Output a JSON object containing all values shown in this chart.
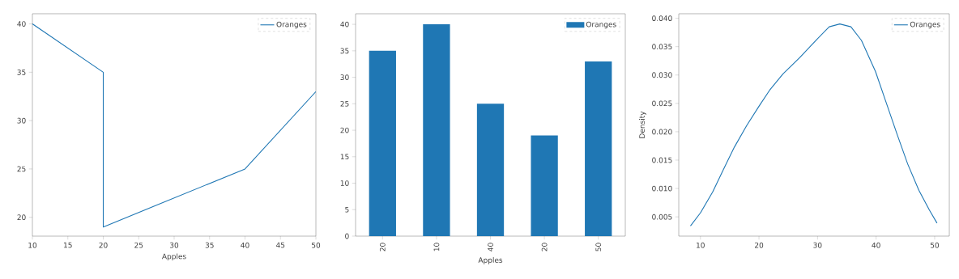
{
  "chart_data": [
    {
      "type": "line",
      "xlabel": "Apples",
      "x": [
        10,
        20,
        20,
        40,
        50
      ],
      "series": [
        {
          "name": "Oranges",
          "color": "#1f77b4",
          "values": [
            40,
            35,
            19,
            25,
            33
          ]
        }
      ],
      "xlim": [
        10,
        50
      ],
      "ylim": [
        18.05,
        41.05
      ],
      "xticks": [
        10,
        15,
        20,
        25,
        30,
        35,
        40,
        45,
        50
      ],
      "yticks": [
        20,
        25,
        30,
        35,
        40
      ],
      "legend": "top right",
      "grid": false
    },
    {
      "type": "bar",
      "xlabel": "Apples",
      "categories": [
        "20",
        "10",
        "40",
        "20",
        "50"
      ],
      "series": [
        {
          "name": "Oranges",
          "color": "#1f77b4",
          "values": [
            35,
            40,
            25,
            19,
            33
          ]
        }
      ],
      "ylim": [
        0,
        42
      ],
      "yticks": [
        0,
        5,
        10,
        15,
        20,
        25,
        30,
        35,
        40
      ],
      "legend": "top right",
      "grid": false
    },
    {
      "type": "line",
      "ylabel": "Density",
      "x": [
        8.3,
        10,
        12.1,
        13.9,
        15.8,
        17.9,
        20,
        21.8,
        24.1,
        26.9,
        29.9,
        32,
        33.8,
        35.7,
        37.5,
        39.9,
        41.7,
        43.6,
        45.4,
        47.3,
        49.1,
        50.4
      ],
      "series": [
        {
          "name": "Oranges",
          "color": "#1f77b4",
          "values": [
            0.0034,
            0.0057,
            0.0094,
            0.0133,
            0.0173,
            0.0211,
            0.0245,
            0.0273,
            0.0302,
            0.033,
            0.0363,
            0.0385,
            0.039,
            0.0385,
            0.0361,
            0.0306,
            0.0252,
            0.0195,
            0.0143,
            0.0097,
            0.0062,
            0.0039
          ]
        }
      ],
      "xlim": [
        6.3,
        52.5
      ],
      "ylim": [
        0.0016,
        0.0408
      ],
      "xticks": [
        10,
        20,
        30,
        40,
        50
      ],
      "yticks": [
        0.005,
        {
          "value": 0.01,
          "label": "0.010"
        },
        0.015,
        {
          "value": 0.02,
          "label": "0.020"
        },
        0.025,
        {
          "value": 0.03,
          "label": "0.030"
        },
        0.035,
        {
          "value": 0.04,
          "label": "0.040"
        }
      ],
      "legend": "top right",
      "grid": false
    }
  ]
}
